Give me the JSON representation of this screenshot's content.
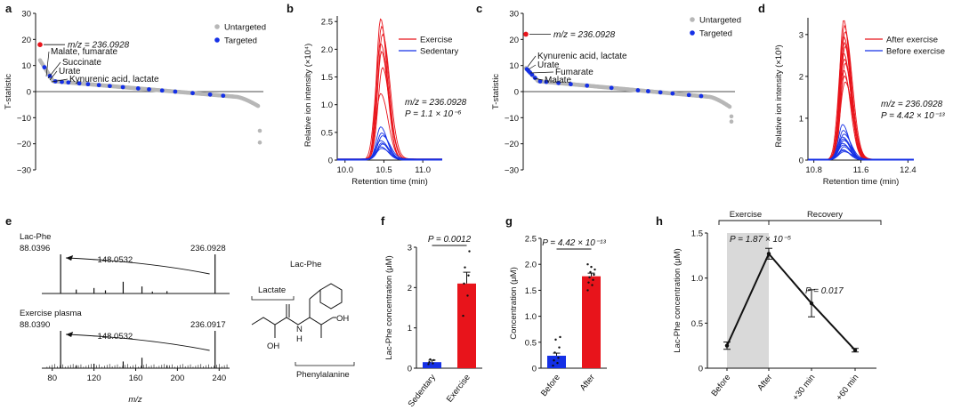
{
  "colors": {
    "red": "#e8141b",
    "blue": "#1530e6",
    "gray": "#b7b7b7",
    "shade": "#d9d9d9",
    "black": "#111111"
  },
  "chart_data": [
    {
      "panel": "a",
      "type": "scatter",
      "ylabel": "T-statistic",
      "ylim": [
        -30,
        30
      ],
      "yticks": [
        "30",
        "20",
        "10",
        "0",
        "−10",
        "−20",
        "−30"
      ],
      "legend": {
        "items": [
          "Untargeted",
          "Targeted"
        ],
        "colors": [
          "#b7b7b7",
          "#1530e6"
        ],
        "placement": "top-right"
      },
      "curve": {
        "n_features": 1650,
        "top_t": 12,
        "tail_t": -5.5
      },
      "highlight": {
        "label": "m/z = 236.0928",
        "t": 18
      },
      "end_points": [
        -15,
        -19.5
      ],
      "targeted_x": [
        0.02,
        0.045,
        0.07,
        0.1,
        0.13,
        0.18,
        0.22,
        0.27,
        0.32,
        0.38,
        0.45,
        0.5,
        0.56,
        0.62,
        0.7,
        0.78,
        0.84
      ],
      "annotations": [
        "Malate, fumarate",
        "Succinate",
        "Urate",
        "Kynurenic acid, lactate"
      ]
    },
    {
      "panel": "b",
      "type": "line",
      "xlabel": "Retention time (min)",
      "ylabel": "Relative ion intensity (×10⁴)",
      "xlim": [
        9.9,
        11.25
      ],
      "ylim": [
        0,
        2.6
      ],
      "xticks": [
        "10.0",
        "10.5",
        "11.0"
      ],
      "yticks": [
        "0",
        "0.5",
        "1.0",
        "1.5",
        "2.0",
        "2.5"
      ],
      "series": [
        {
          "name": "Exercise",
          "color": "#e8141b",
          "center": 10.47,
          "peaks": [
            2.55,
            2.4,
            2.25,
            2.1,
            1.95,
            1.65,
            1.2
          ]
        },
        {
          "name": "Sedentary",
          "color": "#1530e6",
          "center": 10.47,
          "peaks": [
            0.6,
            0.48,
            0.42,
            0.35,
            0.3,
            0.27,
            0.24,
            0.2
          ]
        }
      ],
      "annotation": [
        "m/z = 236.0928",
        "P = 1.1 × 10⁻⁶"
      ]
    },
    {
      "panel": "c",
      "type": "scatter",
      "ylabel": "T-statistic",
      "ylim": [
        -30,
        30
      ],
      "yticks": [
        "30",
        "20",
        "10",
        "0",
        "−10",
        "−20",
        "−30"
      ],
      "legend": {
        "items": [
          "Untargeted",
          "Targeted"
        ],
        "colors": [
          "#b7b7b7",
          "#1530e6"
        ],
        "placement": "top-right"
      },
      "curve": {
        "n_features": 1650,
        "top_t": 9,
        "tail_t": -5.8
      },
      "highlight": {
        "label": "m/z = 236.0928",
        "t": 22
      },
      "end_points": [
        -9.5,
        -11.5
      ],
      "targeted_x": [
        0.005,
        0.012,
        0.02,
        0.03,
        0.045,
        0.07,
        0.1,
        0.16,
        0.22,
        0.3,
        0.42,
        0.55,
        0.6,
        0.66,
        0.72,
        0.8,
        0.86
      ],
      "annotations": [
        "Kynurenic acid, lactate",
        "Urate",
        "Fumarate",
        "Malate"
      ]
    },
    {
      "panel": "d",
      "type": "line",
      "xlabel": "Retention time (min)",
      "ylabel": "Relative ion intensity (×10³)",
      "xlim": [
        10.7,
        12.5
      ],
      "ylim": [
        0,
        3.4
      ],
      "xticks": [
        "10.8",
        "11.6",
        "12.4"
      ],
      "yticks": [
        "0",
        "1",
        "2",
        "3"
      ],
      "series": [
        {
          "name": "After exercise",
          "color": "#e8141b",
          "center": 11.32,
          "peaks": [
            3.35,
            3.2,
            3.05,
            2.95,
            2.8,
            2.7,
            2.55,
            2.4,
            2.3,
            2.15,
            2.0,
            1.85
          ]
        },
        {
          "name": "Before exercise",
          "color": "#1530e6",
          "center": 11.3,
          "peaks": [
            0.85,
            0.7,
            0.6,
            0.55,
            0.5,
            0.45,
            0.4,
            0.35,
            0.3,
            0.25,
            0.22,
            0.18
          ]
        }
      ],
      "annotation": [
        "m/z = 236.0928",
        "P = 4.42 × 10⁻¹³"
      ]
    },
    {
      "panel": "e",
      "type": "bar",
      "xlabel": "m/z",
      "xlim": [
        70,
        250
      ],
      "xticks": [
        "80",
        "120",
        "160",
        "200",
        "240"
      ],
      "spectra": [
        {
          "name": "Lac-Phe",
          "labels": [
            "88.0396",
            "236.0928"
          ],
          "shift": "−148.0532",
          "peaks": [
            [
              88.04,
              1.0
            ],
            [
              236.09,
              1.0
            ],
            [
              103,
              0.1
            ],
            [
              120,
              0.14
            ],
            [
              131,
              0.08
            ],
            [
              148,
              0.3
            ],
            [
              166,
              0.18
            ],
            [
              176,
              0.05
            ],
            [
              190,
              0.06
            ]
          ]
        },
        {
          "name": "Exercise plasma",
          "labels": [
            "88.0390",
            "236.0917"
          ],
          "shift": "−148.0532",
          "peaks": [
            [
              88.04,
              1.0
            ],
            [
              236.09,
              1.0
            ],
            [
              103,
              0.08
            ],
            [
              120,
              0.12
            ],
            [
              148,
              0.18
            ],
            [
              166,
              0.28
            ],
            [
              190,
              0.08
            ]
          ]
        }
      ],
      "structure": {
        "title": "Lac-Phe",
        "lactate": "Lactate",
        "phenylalanine": "Phenylalanine",
        "oh": "OH",
        "nh": "N",
        "h": "H",
        "oh2": "OH"
      }
    },
    {
      "panel": "f",
      "type": "bar",
      "ylabel": "Lac-Phe concentration (μM)",
      "ylim": [
        0,
        3
      ],
      "categories": [
        "Sedentary",
        "Exercise"
      ],
      "values": [
        0.15,
        2.1
      ],
      "errors": [
        0.05,
        0.28
      ],
      "colors": [
        "#1530e6",
        "#e8141b"
      ],
      "points": [
        [
          0.1,
          0.12,
          0.15,
          0.2,
          0.22
        ],
        [
          1.3,
          1.8,
          2.1,
          2.3,
          2.5,
          2.9
        ]
      ],
      "yticks": [
        "0",
        "1",
        "2",
        "3"
      ],
      "pvalue": "P = 0.0012"
    },
    {
      "panel": "g",
      "type": "bar",
      "ylabel": "Concentration (μM)",
      "ylim": [
        0,
        2.5
      ],
      "categories": [
        "Before",
        "After"
      ],
      "values": [
        0.24,
        1.77
      ],
      "errors": [
        0.05,
        0.06
      ],
      "colors": [
        "#1530e6",
        "#e8141b"
      ],
      "points": [
        [
          0.05,
          0.1,
          0.15,
          0.2,
          0.3,
          0.4,
          0.55,
          0.6
        ],
        [
          1.5,
          1.6,
          1.65,
          1.7,
          1.75,
          1.8,
          1.85,
          1.9,
          1.95,
          2.0
        ]
      ],
      "yticks": [
        "0",
        "0.5",
        "1.0",
        "1.5",
        "2.0",
        "2.5"
      ],
      "pvalue": "P = 4.42 × 10⁻¹³"
    },
    {
      "panel": "h",
      "type": "line",
      "ylabel": "Lac-Phe concentration (μM)",
      "ylim": [
        0,
        1.5
      ],
      "categories": [
        "Before",
        "After",
        "+30 min",
        "+60 min"
      ],
      "values": [
        0.25,
        1.27,
        0.72,
        0.2
      ],
      "errors": [
        0.04,
        0.06,
        0.15,
        0.02
      ],
      "yticks": [
        "0",
        "0.5",
        "1.0",
        "1.5"
      ],
      "phases": [
        "Exercise",
        "Recovery"
      ],
      "pvalues": [
        "P = 1.87 × 10⁻⁵",
        "P = 0.017"
      ]
    }
  ]
}
